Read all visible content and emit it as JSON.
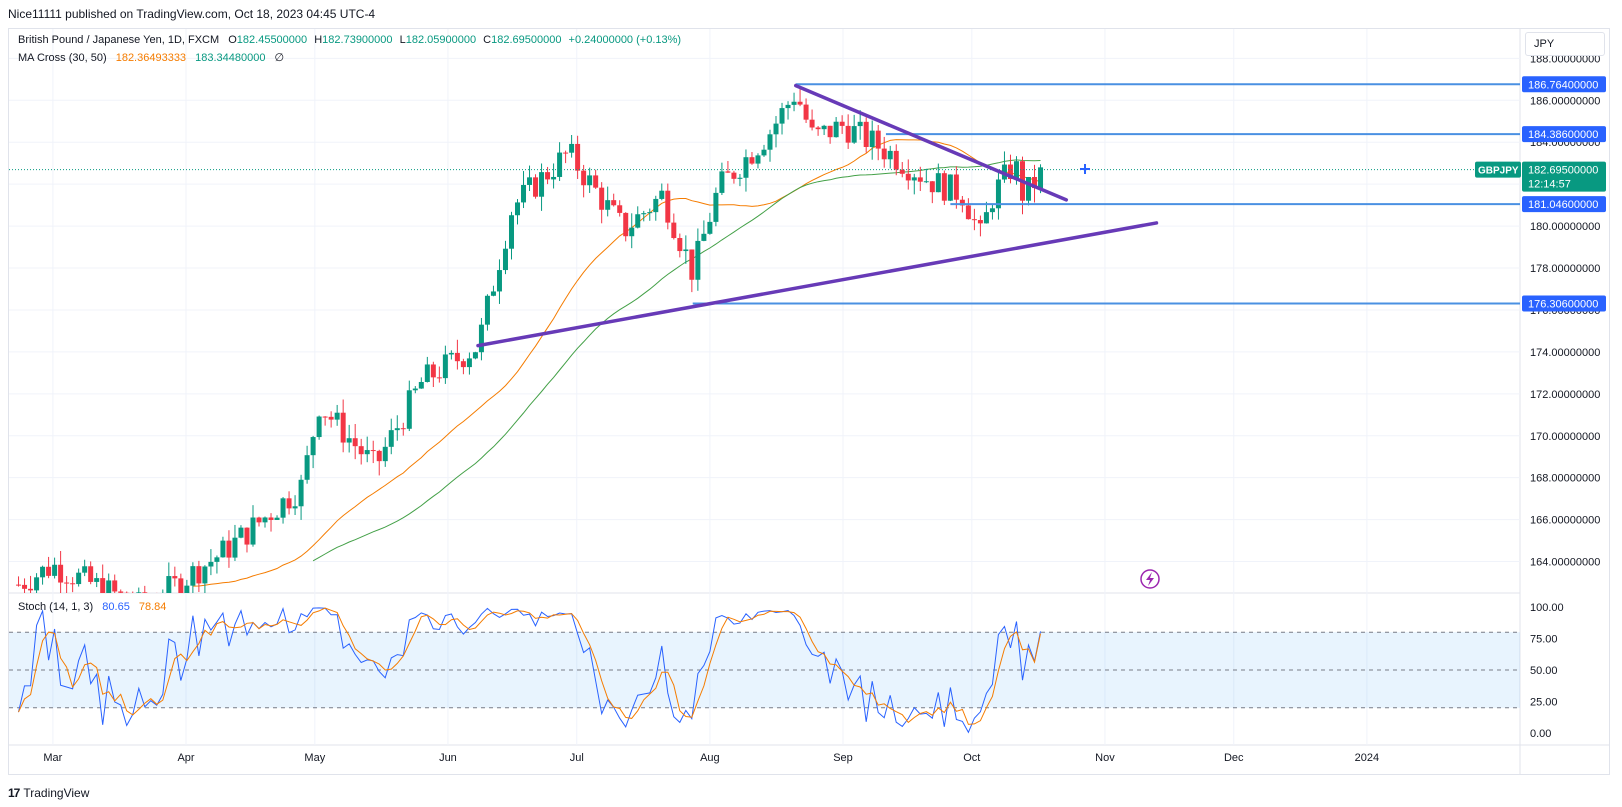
{
  "header": {
    "published": "Nice11111 published on TradingView.com, Oct 18, 2023 04:45 UTC-4"
  },
  "legend": {
    "symbol": "British Pound / Japanese Yen, 1D, FXCM",
    "o_label": "O",
    "o_value": "182.45500000",
    "h_label": "H",
    "h_value": "182.73900000",
    "l_label": "L",
    "l_value": "182.05900000",
    "c_label": "C",
    "c_value": "182.69500000",
    "change": "+0.24000000 (+0.13%)",
    "ma_label": "MA Cross (30, 50)",
    "ma_fast": "182.36493333",
    "ma_slow": "183.34480000",
    "ma_extra": "∅",
    "stoch_label": "Stoch (14, 1, 3)",
    "stoch_k": "80.65",
    "stoch_d": "78.84"
  },
  "currency": "JPY",
  "price_badge": {
    "symbol": "GBPJPY",
    "price": "182.69500000",
    "countdown": "12:14:57"
  },
  "footer": {
    "brand": "TradingView"
  },
  "colors": {
    "up": "#089981",
    "down": "#f23645",
    "ma_fast": "#f57c00",
    "ma_slow": "#43a047",
    "trendline": "#673ab7",
    "level": "#4a90e2",
    "stoch_k": "#2962ff",
    "stoch_d": "#f57c00"
  },
  "chart_data": {
    "type": "candlestick",
    "price_axis": {
      "ticks": [
        "188.00000000",
        "186.00000000",
        "184.00000000",
        "182.00000000",
        "180.00000000",
        "178.00000000",
        "176.00000000",
        "174.00000000",
        "172.00000000",
        "170.00000000",
        "168.00000000",
        "166.00000000",
        "164.00000000"
      ],
      "ylim": [
        162.5,
        189.4
      ]
    },
    "time_axis": {
      "labels": [
        "Mar",
        "Apr",
        "May",
        "Jun",
        "Jul",
        "Aug",
        "Sep",
        "Oct",
        "Nov",
        "Dec",
        "2024"
      ]
    },
    "levels": [
      {
        "label": "186.76400000",
        "value": 186.764
      },
      {
        "label": "184.38600000",
        "value": 184.386
      },
      {
        "label": "181.04600000",
        "value": 181.046
      },
      {
        "label": "176.30600000",
        "value": 176.306
      }
    ],
    "trendlines": [
      {
        "name": "upper",
        "from": {
          "date": "2023-08-21",
          "price": 186.7
        },
        "to": {
          "date": "2023-10-23",
          "price": 181.25
        }
      },
      {
        "name": "lower",
        "from": {
          "date": "2023-06-08",
          "price": 174.3
        },
        "to": {
          "date": "2023-11-13",
          "price": 180.15
        }
      }
    ],
    "candles_summary": {
      "start": "2023-02-21",
      "end": "2023-10-18",
      "key_prices": [
        {
          "date": "2023-02-21",
          "close": 162.9
        },
        {
          "date": "2023-03-01",
          "close": 163.8
        },
        {
          "date": "2023-03-22",
          "close": 161.8
        },
        {
          "date": "2023-04-10",
          "close": 164.5
        },
        {
          "date": "2023-04-28",
          "close": 167.6
        },
        {
          "date": "2023-05-02",
          "close": 171.5
        },
        {
          "date": "2023-05-15",
          "close": 168.5
        },
        {
          "date": "2023-05-26",
          "close": 172.6
        },
        {
          "date": "2023-06-08",
          "close": 174.3
        },
        {
          "date": "2023-06-16",
          "close": 180.9
        },
        {
          "date": "2023-06-29",
          "close": 183.5
        },
        {
          "date": "2023-07-12",
          "close": 179.8
        },
        {
          "date": "2023-07-21",
          "close": 181.5
        },
        {
          "date": "2023-07-28",
          "close": 177.8
        },
        {
          "date": "2023-08-03",
          "close": 181.8
        },
        {
          "date": "2023-08-15",
          "close": 184.5
        },
        {
          "date": "2023-08-21",
          "close": 186.4
        },
        {
          "date": "2023-08-25",
          "close": 184.2
        },
        {
          "date": "2023-09-01",
          "close": 184.8
        },
        {
          "date": "2023-09-11",
          "close": 183.6
        },
        {
          "date": "2023-09-21",
          "close": 182.2
        },
        {
          "date": "2023-09-29",
          "close": 181.5
        },
        {
          "date": "2023-10-03",
          "close": 179.5
        },
        {
          "date": "2023-10-06",
          "close": 181.5
        },
        {
          "date": "2023-10-11",
          "close": 183.0
        },
        {
          "date": "2023-10-13",
          "close": 181.4
        },
        {
          "date": "2023-10-18",
          "close": 182.695
        }
      ]
    },
    "ma_cross": {
      "fast_period": 30,
      "slow_period": 50,
      "fast_last": 182.36493333,
      "slow_last": 183.3448
    },
    "stochastic": {
      "params": "14, 1, 3",
      "ticks": [
        "100.00",
        "75.00",
        "50.00",
        "25.00",
        "0.00"
      ],
      "bands": [
        80,
        50,
        20
      ],
      "k_last": 80.65,
      "d_last": 78.84
    }
  }
}
